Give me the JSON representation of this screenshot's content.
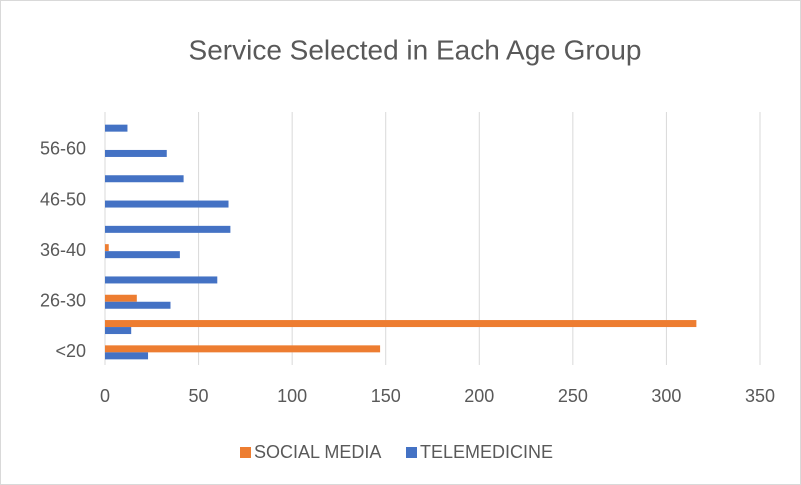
{
  "chart_data": {
    "type": "hbar",
    "title": "Service Selected in Each Age Group",
    "categories": [
      "<20",
      null,
      "26-30",
      null,
      "36-40",
      null,
      "46-50",
      null,
      "56-60",
      null
    ],
    "series": [
      {
        "name": "SOCIAL MEDIA",
        "color": "#ed7d31",
        "values": [
          147,
          316,
          17,
          0,
          2,
          0,
          0,
          0,
          0,
          0
        ]
      },
      {
        "name": "TELEMEDICINE",
        "color": "#4472c4",
        "values": [
          23,
          14,
          35,
          60,
          40,
          67,
          66,
          42,
          33,
          12
        ]
      }
    ],
    "xlim": [
      0,
      350
    ],
    "xticks": [
      0,
      50,
      100,
      150,
      200,
      250,
      300,
      350
    ],
    "grid": true,
    "legend": "bottom"
  }
}
